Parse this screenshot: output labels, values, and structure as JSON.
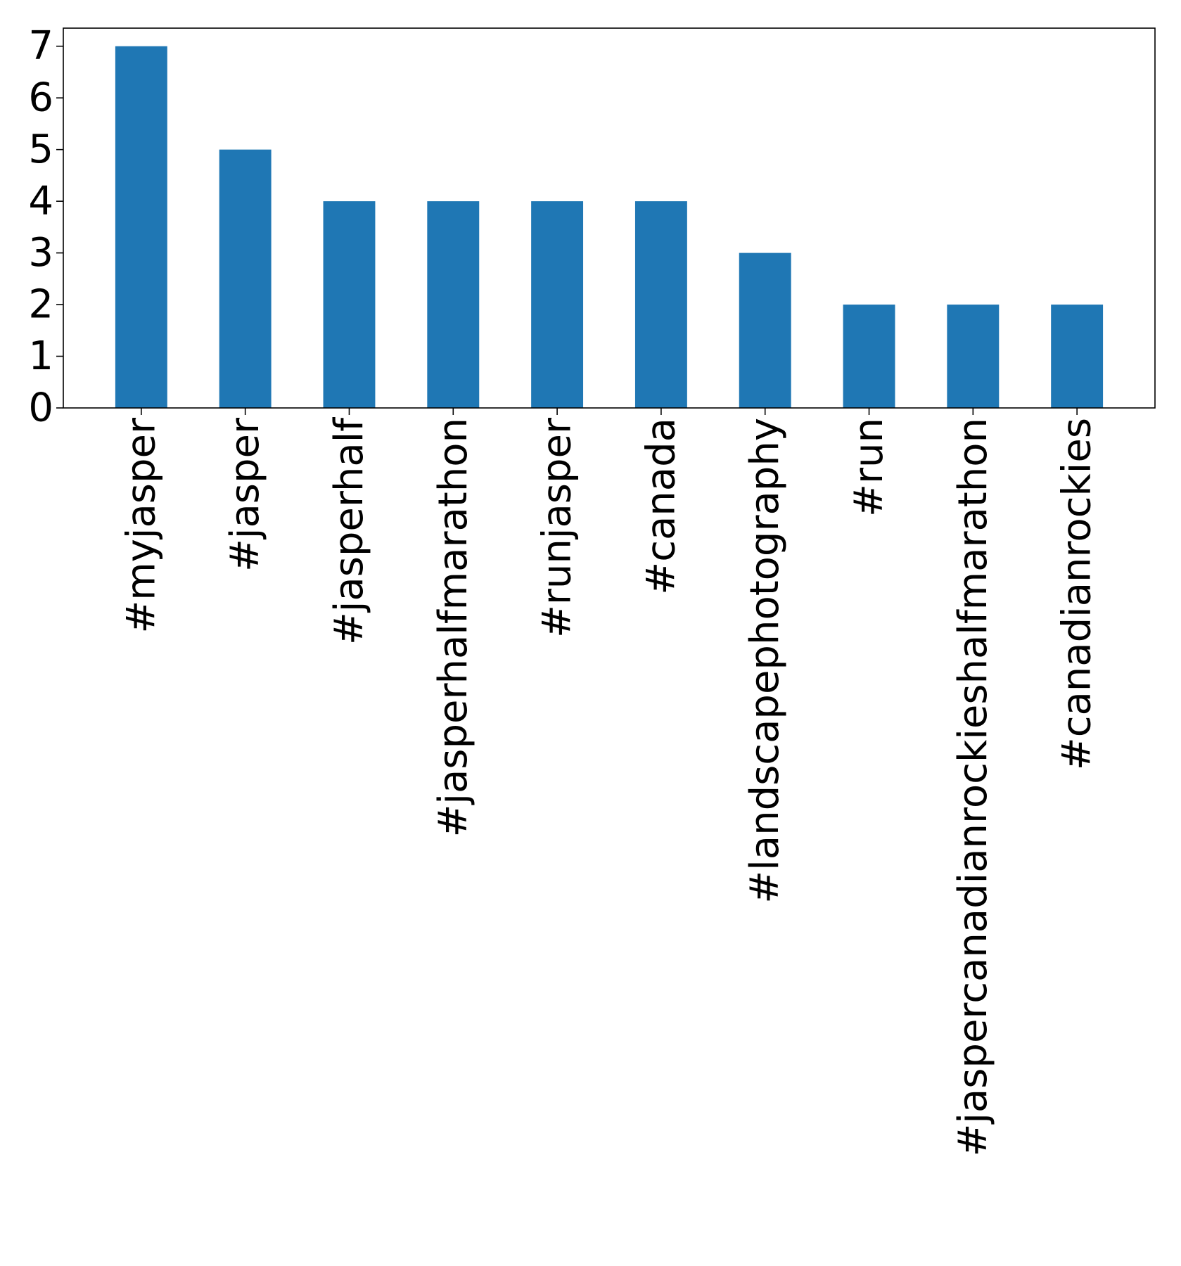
{
  "chart_data": {
    "type": "bar",
    "title": "",
    "xlabel": "",
    "ylabel": "",
    "categories": [
      "#myjasper",
      "#jasper",
      "#jasperhalf",
      "#jasperhalfmarathon",
      "#runjasper",
      "#canada",
      "#landscapephotography",
      "#run",
      "#jaspercanadianrockieshalfmarathon",
      "#canadianrockies"
    ],
    "values": [
      7,
      5,
      4,
      4,
      4,
      4,
      3,
      2,
      2,
      2
    ],
    "yticks": [
      0,
      1,
      2,
      3,
      4,
      5,
      6,
      7
    ],
    "ylim": [
      0,
      7.35
    ],
    "grid": false,
    "legend": "none",
    "x_tick_rotation": "vertical",
    "colors": {
      "bar": "#1f77b4",
      "axis": "#000000",
      "background": "#ffffff"
    }
  }
}
